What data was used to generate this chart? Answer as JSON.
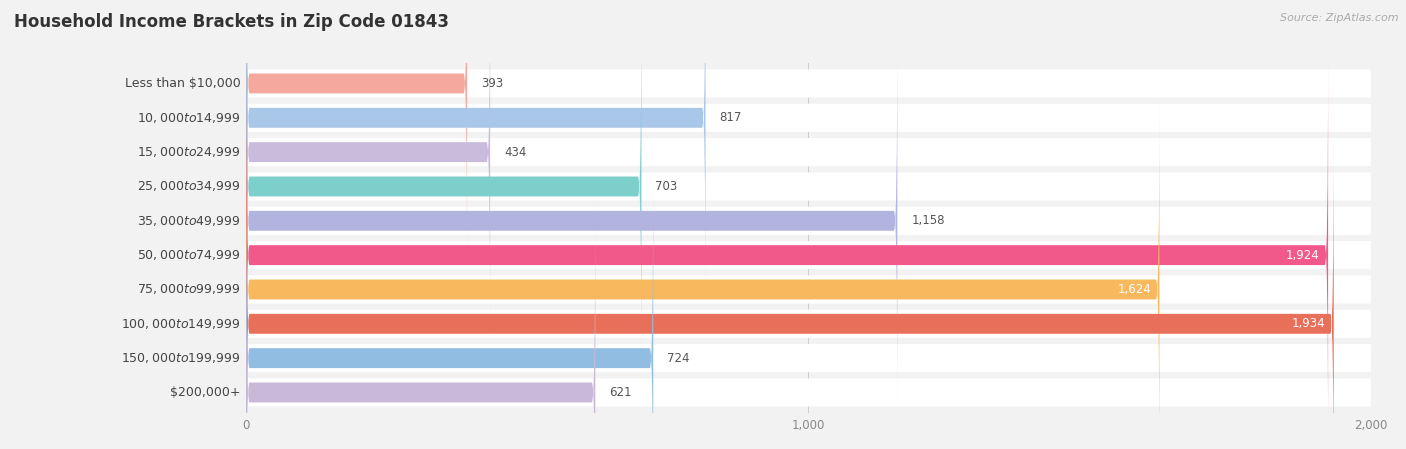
{
  "title": "Household Income Brackets in Zip Code 01843",
  "source": "Source: ZipAtlas.com",
  "categories": [
    "Less than $10,000",
    "$10,000 to $14,999",
    "$15,000 to $24,999",
    "$25,000 to $34,999",
    "$35,000 to $49,999",
    "$50,000 to $74,999",
    "$75,000 to $99,999",
    "$100,000 to $149,999",
    "$150,000 to $199,999",
    "$200,000+"
  ],
  "values": [
    393,
    817,
    434,
    703,
    1158,
    1924,
    1624,
    1934,
    724,
    621
  ],
  "bar_colors": [
    "#f5a89e",
    "#a9c7e8",
    "#c9bbdb",
    "#7dcfcc",
    "#b3b3e0",
    "#f0598a",
    "#f7b85e",
    "#e8705a",
    "#92bde2",
    "#c9b8d8"
  ],
  "xlim": [
    0,
    2000
  ],
  "xticks": [
    0,
    1000,
    2000
  ],
  "xtick_labels": [
    "0",
    "1,000",
    "2,000"
  ],
  "background_color": "#f2f2f2",
  "row_bg_color": "#ffffff",
  "title_fontsize": 12,
  "label_fontsize": 9,
  "value_fontsize": 8.5,
  "value_color_dark": "#555555",
  "value_color_light": "#ffffff",
  "value_threshold": 1500
}
